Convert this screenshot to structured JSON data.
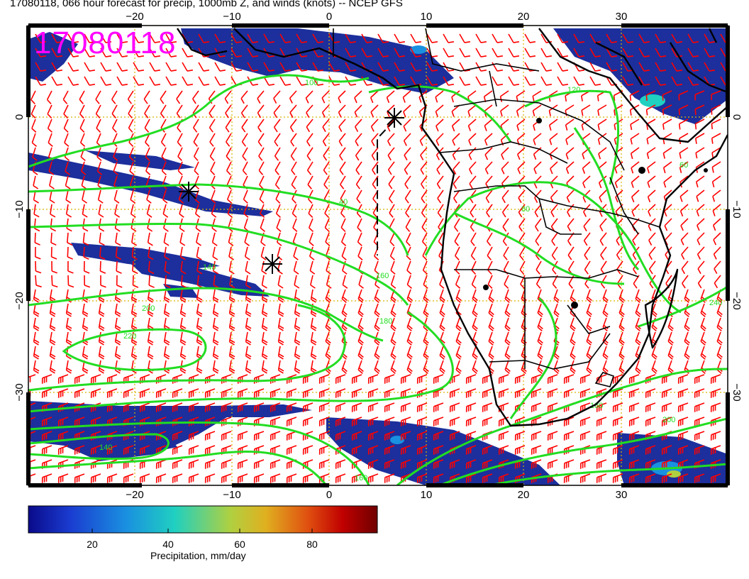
{
  "title": "17080118, 066 hour forecast for precip, 1000mb Z, and winds (knots) -- NCEP GFS",
  "stamp": "17080118",
  "axes": {
    "lon_ticks": [
      "−20",
      "−10",
      "0",
      "10",
      "20",
      "30"
    ],
    "lat_ticks": [
      "0",
      "−10",
      "−20",
      "−30"
    ]
  },
  "contour_labels": [
    "100",
    "120",
    "40",
    "60",
    "80",
    "140",
    "160",
    "180",
    "200",
    "220",
    "240",
    "140",
    "160",
    "180",
    "200"
  ],
  "colorbar": {
    "label": "Precipitation, mm/day",
    "ticks": [
      "20",
      "40",
      "60",
      "80"
    ],
    "colors": [
      "#0a0a8a",
      "#1a3cd0",
      "#1a90e0",
      "#20d0c0",
      "#b0d040",
      "#e0b020",
      "#e05010",
      "#c00000",
      "#700000"
    ]
  },
  "colors": {
    "contour": "#22dd22",
    "barb": "#ff0000",
    "grid": "#d8b400",
    "precip": "#1c2f9c",
    "stamp": "#ff00ff"
  },
  "markers": [
    "cyclone-center",
    "cyclone-center",
    "cyclone-center"
  ]
}
